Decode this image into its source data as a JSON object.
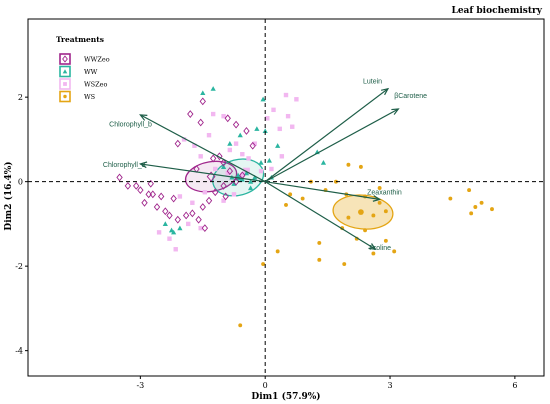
{
  "chart_data": {
    "type": "scatter",
    "title": "Leaf biochemistry",
    "xlabel": "Dim1 (57.9%)",
    "ylabel": "Dim2 (16.4%)",
    "xlim": [
      -5.7,
      6.7
    ],
    "ylim": [
      -4.6,
      3.85
    ],
    "x_ticks": [
      -3,
      0,
      3,
      6
    ],
    "y_ticks": [
      -4,
      -2,
      0,
      2
    ],
    "grid": false,
    "legend": {
      "title": "Treatments",
      "position": "top-left"
    },
    "colors": {
      "WWZeo": "#a0268c",
      "WW": "#2ab5a0",
      "WSZeo": "#f2b7f0",
      "WS": "#e4a514",
      "arrow": "#1e5e48",
      "axis": "#000000"
    },
    "series": [
      {
        "name": "WWZeo",
        "marker": "diamond-open",
        "mean": [
          -1.3,
          0.12
        ],
        "ellipse": {
          "cx": -1.3,
          "cy": 0.12,
          "rx": 0.62,
          "ry": 0.35,
          "angle": -10
        },
        "points": [
          [
            -3.3,
            -0.1
          ],
          [
            -3.1,
            -0.1
          ],
          [
            -3.0,
            -0.2
          ],
          [
            -2.8,
            -0.3
          ],
          [
            -2.9,
            -0.5
          ],
          [
            -2.7,
            -0.3
          ],
          [
            -2.5,
            -0.35
          ],
          [
            -2.4,
            -0.7
          ],
          [
            -2.3,
            -0.8
          ],
          [
            -2.1,
            -0.9
          ],
          [
            -1.9,
            -0.8
          ],
          [
            -1.75,
            -0.75
          ],
          [
            -1.6,
            -0.9
          ],
          [
            -1.5,
            -0.6
          ],
          [
            -1.45,
            -1.1
          ],
          [
            -1.25,
            0.55
          ],
          [
            -1.1,
            0.6
          ],
          [
            -1.0,
            0.45
          ],
          [
            -0.85,
            0.25
          ],
          [
            -0.7,
            0.0
          ],
          [
            -1.0,
            -0.1
          ],
          [
            -1.2,
            -0.25
          ],
          [
            -0.95,
            -0.35
          ],
          [
            -1.8,
            1.6
          ],
          [
            -1.5,
            1.9
          ],
          [
            -0.9,
            1.5
          ],
          [
            -0.7,
            1.35
          ],
          [
            -0.45,
            1.2
          ],
          [
            -0.3,
            0.85
          ],
          [
            -2.1,
            0.9
          ],
          [
            -3.5,
            0.1
          ],
          [
            -2.6,
            -0.6
          ],
          [
            -2.2,
            -0.4
          ],
          [
            -1.65,
            0.3
          ],
          [
            -1.35,
            -0.45
          ],
          [
            -2.75,
            -0.05
          ],
          [
            -0.55,
            0.15
          ],
          [
            -1.55,
            1.4
          ]
        ]
      },
      {
        "name": "WW",
        "marker": "triangle",
        "mean": [
          -0.65,
          0.1
        ],
        "ellipse": {
          "cx": -0.65,
          "cy": 0.1,
          "rx": 0.62,
          "ry": 0.42,
          "angle": -15
        },
        "points": [
          [
            -2.4,
            -1.0
          ],
          [
            -2.25,
            -1.15
          ],
          [
            -2.2,
            -1.2
          ],
          [
            -2.05,
            -1.1
          ],
          [
            -1.5,
            2.1
          ],
          [
            -1.25,
            2.2
          ],
          [
            -1.0,
            0.35
          ],
          [
            -0.8,
            0.1
          ],
          [
            -0.75,
            -0.05
          ],
          [
            -0.65,
            0.15
          ],
          [
            -0.55,
            0.05
          ],
          [
            -0.45,
            0.2
          ],
          [
            -0.35,
            0.0
          ],
          [
            -0.25,
            0.1
          ],
          [
            -0.1,
            0.45
          ],
          [
            0.1,
            0.5
          ],
          [
            -0.6,
            1.1
          ],
          [
            -0.2,
            1.25
          ],
          [
            0.0,
            1.2
          ],
          [
            0.15,
            0.1
          ],
          [
            1.25,
            0.7
          ],
          [
            -0.85,
            0.9
          ],
          [
            -0.35,
            -0.15
          ],
          [
            0.3,
            0.85
          ],
          [
            1.4,
            0.45
          ],
          [
            -0.05,
            1.95
          ]
        ]
      },
      {
        "name": "WSZeo",
        "marker": "square",
        "mean": [
          -0.45,
          0.25
        ],
        "ellipse": null,
        "points": [
          [
            -1.95,
            1.0
          ],
          [
            -1.7,
            0.85
          ],
          [
            -1.55,
            0.6
          ],
          [
            -1.35,
            1.1
          ],
          [
            -1.2,
            0.3
          ],
          [
            -0.85,
            0.75
          ],
          [
            -0.7,
            0.9
          ],
          [
            -0.55,
            0.65
          ],
          [
            -0.4,
            0.55
          ],
          [
            -0.25,
            0.9
          ],
          [
            0.05,
            1.5
          ],
          [
            0.2,
            1.7
          ],
          [
            0.35,
            1.25
          ],
          [
            0.55,
            1.55
          ],
          [
            0.65,
            1.3
          ],
          [
            0.5,
            2.05
          ],
          [
            0.75,
            1.95
          ],
          [
            -2.3,
            -1.35
          ],
          [
            -2.15,
            -1.6
          ],
          [
            -2.55,
            -1.2
          ],
          [
            -1.85,
            -1.0
          ],
          [
            -1.55,
            -1.1
          ],
          [
            -2.05,
            -0.35
          ],
          [
            -1.75,
            -0.5
          ],
          [
            -1.45,
            -0.25
          ],
          [
            -1.0,
            -0.45
          ],
          [
            -0.75,
            -0.3
          ],
          [
            -0.9,
            0.2
          ],
          [
            -0.55,
            0.15
          ],
          [
            0.15,
            0.3
          ],
          [
            0.4,
            0.6
          ],
          [
            -1.25,
            1.6
          ],
          [
            -1.0,
            1.55
          ],
          [
            -0.1,
            0.25
          ]
        ]
      },
      {
        "name": "WS",
        "marker": "circle",
        "mean": [
          2.3,
          -0.72
        ],
        "ellipse": {
          "cx": 2.35,
          "cy": -0.72,
          "rx": 0.72,
          "ry": 0.4,
          "angle": 5
        },
        "points": [
          [
            1.1,
            0.0
          ],
          [
            1.7,
            0.0
          ],
          [
            1.95,
            -0.3
          ],
          [
            2.4,
            -0.35
          ],
          [
            2.75,
            -0.5
          ],
          [
            2.9,
            -0.7
          ],
          [
            2.6,
            -0.8
          ],
          [
            2.0,
            -0.85
          ],
          [
            2.4,
            -1.15
          ],
          [
            1.85,
            -1.1
          ],
          [
            2.2,
            -1.35
          ],
          [
            2.9,
            -1.4
          ],
          [
            3.1,
            -1.65
          ],
          [
            2.6,
            -1.7
          ],
          [
            1.9,
            -1.95
          ],
          [
            1.3,
            -1.85
          ],
          [
            1.3,
            -1.45
          ],
          [
            0.5,
            -0.55
          ],
          [
            0.6,
            -0.3
          ],
          [
            0.9,
            -0.4
          ],
          [
            0.3,
            -1.65
          ],
          [
            -0.05,
            -1.95
          ],
          [
            2.0,
            0.4
          ],
          [
            2.3,
            0.35
          ],
          [
            2.75,
            -0.15
          ],
          [
            4.45,
            -0.4
          ],
          [
            4.9,
            -0.2
          ],
          [
            5.05,
            -0.6
          ],
          [
            5.2,
            -0.5
          ],
          [
            5.45,
            -0.65
          ],
          [
            4.95,
            -0.75
          ],
          [
            -0.6,
            -3.4
          ],
          [
            1.45,
            -0.2
          ]
        ]
      }
    ],
    "loadings": [
      {
        "label": "Lutein",
        "x": 2.95,
        "y": 2.2,
        "label_x": 2.35,
        "label_y": 2.4
      },
      {
        "label": "βCarotene",
        "x": 3.2,
        "y": 1.72,
        "label_x": 3.1,
        "label_y": 2.05
      },
      {
        "label": "Chlorophyll_b",
        "x": -3.0,
        "y": 1.58,
        "label_x": -3.75,
        "label_y": 1.38
      },
      {
        "label": "Chlorophyll_a",
        "x": -3.0,
        "y": 0.42,
        "label_x": -3.9,
        "label_y": 0.42
      },
      {
        "label": "Zeaxanthin",
        "x": 2.75,
        "y": -0.42,
        "label_x": 2.45,
        "label_y": -0.23
      },
      {
        "label": "Proline",
        "x": 2.65,
        "y": -1.6,
        "label_x": 2.5,
        "label_y": -1.55
      }
    ]
  }
}
